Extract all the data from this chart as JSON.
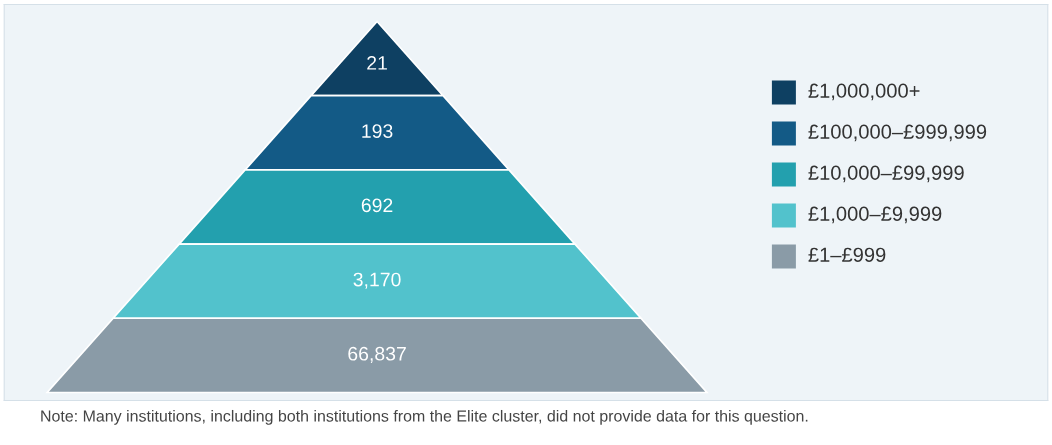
{
  "chart_data": {
    "type": "other",
    "categories": [
      "£1,000,000+",
      "£100,000–£999,999",
      "£10,000–£99,999",
      "£1,000–£9,999",
      "£1–£999"
    ],
    "values": [
      21,
      193,
      692,
      3170,
      66837
    ],
    "value_labels": [
      "21",
      "193",
      "692",
      "3,170",
      "66,837"
    ],
    "colors": [
      "#0e4062",
      "#135a86",
      "#23a0ae",
      "#52c2cc",
      "#8a9ba7"
    ],
    "annotations": [
      "Note: Many institutions, including both institutions from the Elite cluster, did not provide data for this question."
    ]
  }
}
